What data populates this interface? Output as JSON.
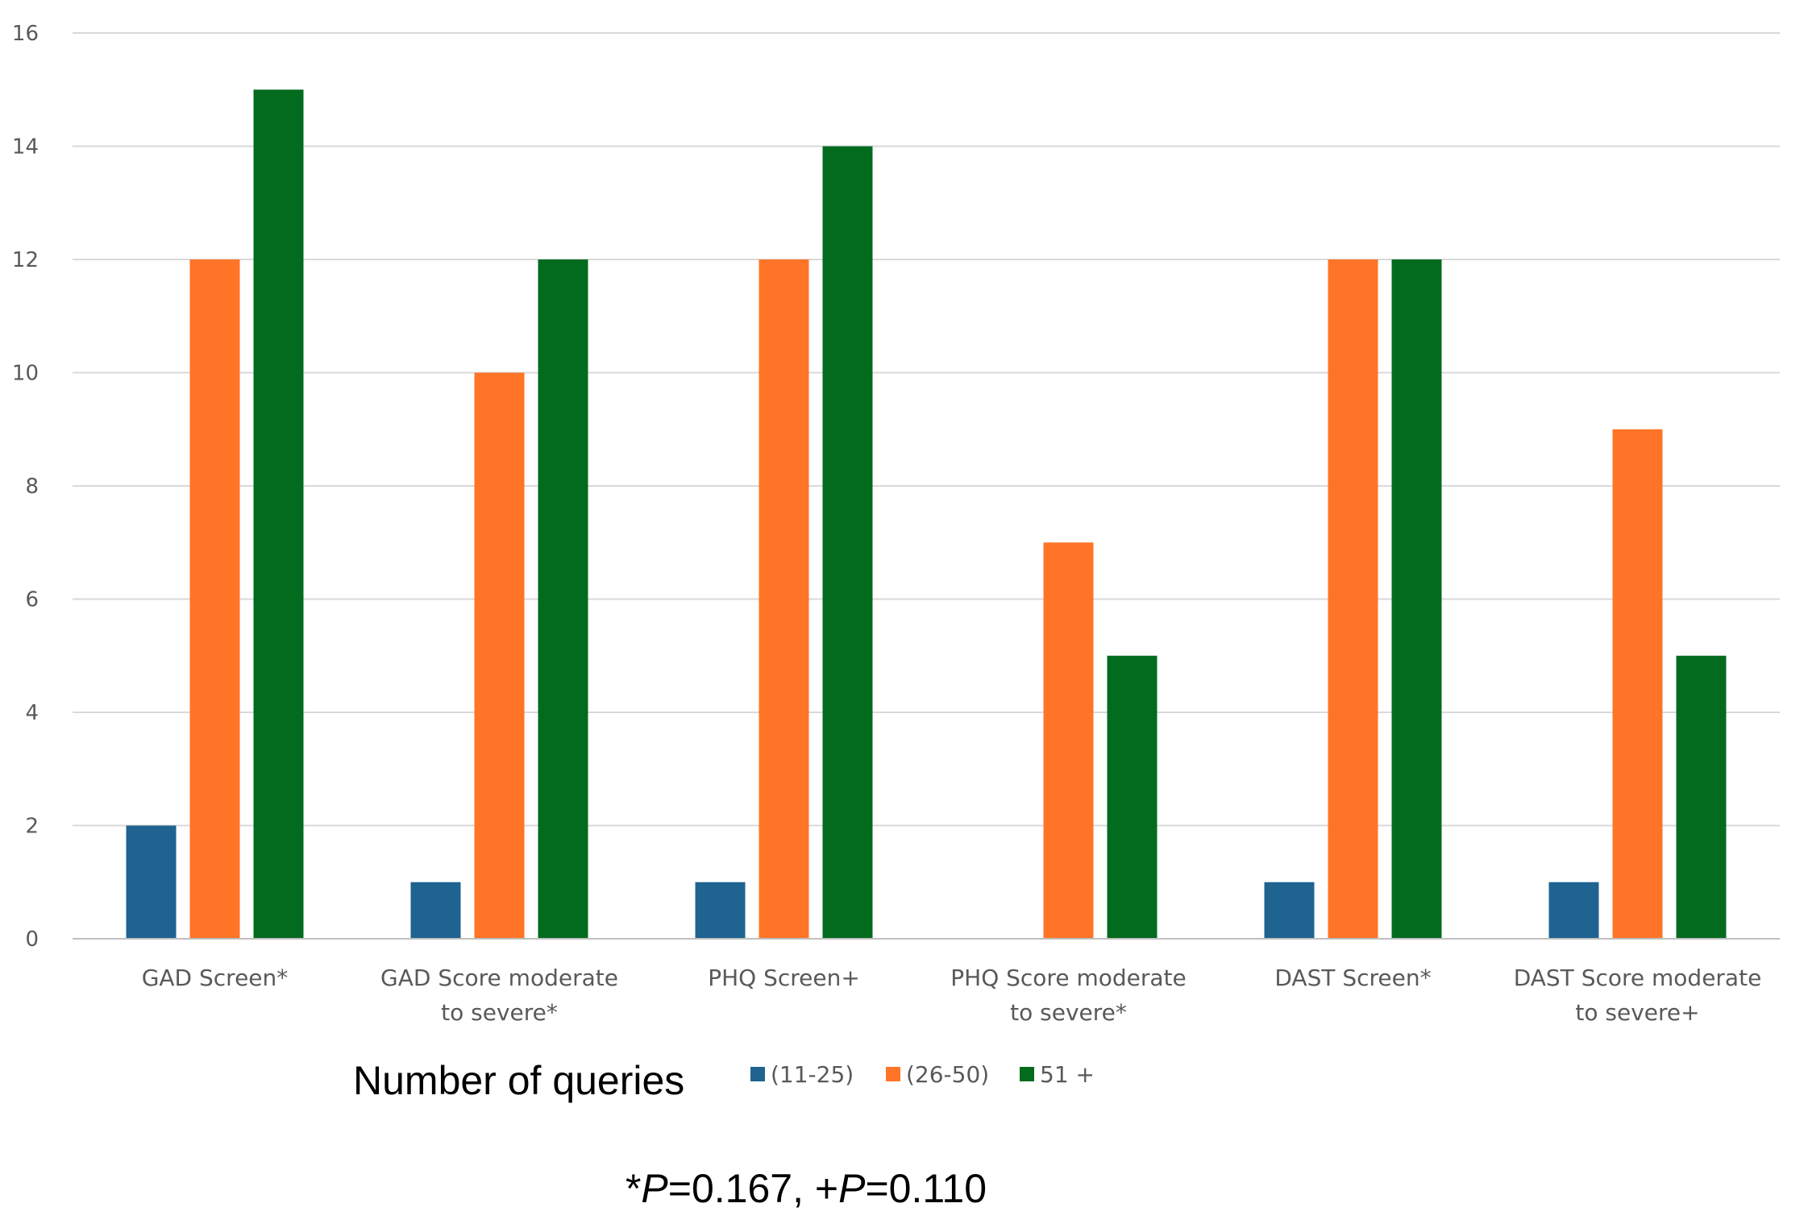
{
  "chart_data": {
    "type": "bar",
    "categories": [
      [
        "GAD Screen*"
      ],
      [
        "GAD Score moderate",
        "to severe*"
      ],
      [
        "PHQ Screen+"
      ],
      [
        "PHQ Score moderate",
        "to severe*"
      ],
      [
        "DAST Screen*"
      ],
      [
        "DAST Score moderate",
        "to severe+"
      ]
    ],
    "series": [
      {
        "name": "(11-25)",
        "color": "#1f6391",
        "values": [
          2,
          1,
          1,
          0,
          1,
          1
        ]
      },
      {
        "name": "(26-50)",
        "color": "#ff7427",
        "values": [
          12,
          10,
          12,
          7,
          12,
          9
        ]
      },
      {
        "name": "51 +",
        "color": "#036b1e",
        "values": [
          15,
          12,
          14,
          5,
          12,
          5
        ]
      }
    ],
    "ylim": [
      0,
      16
    ],
    "yticks": [
      0,
      2,
      4,
      6,
      8,
      10,
      12,
      14,
      16
    ],
    "grid": true,
    "legend_title": "Number of queries",
    "legend_position": "bottom",
    "footnote": {
      "star": "*",
      "p_letter": "P",
      "star_value": "=0.167, ",
      "plus": "+",
      "plus_value": "=0.110"
    }
  }
}
